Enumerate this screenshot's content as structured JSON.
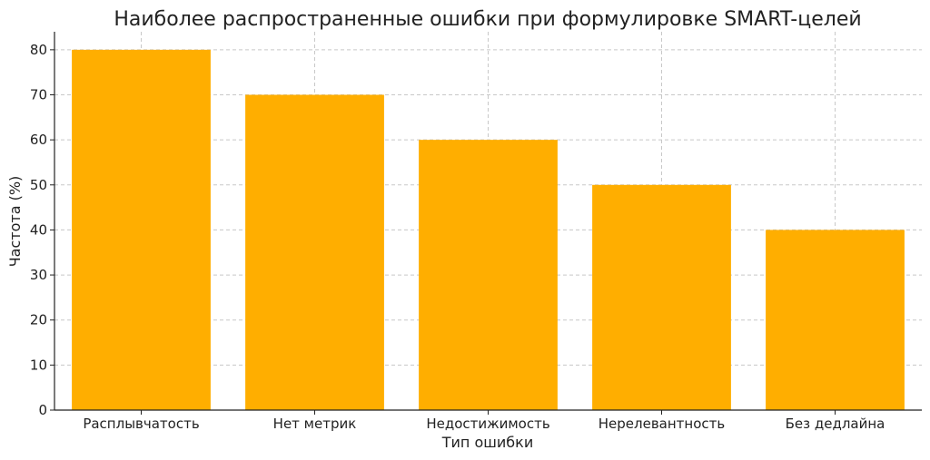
{
  "chart_data": {
    "type": "bar",
    "title": "Наиболее распространенные ошибки при формулировке SMART-целей",
    "xlabel": "Тип ошибки",
    "ylabel": "Частота (%)",
    "categories": [
      "Расплывчатость",
      "Нет метрик",
      "Недостижимость",
      "Нерелевантность",
      "Без дедлайна"
    ],
    "values": [
      80,
      70,
      60,
      50,
      40
    ],
    "ylim": [
      0,
      84
    ],
    "yticks": [
      0,
      10,
      20,
      30,
      40,
      50,
      60,
      70,
      80
    ],
    "grid": true,
    "bar_color": "#FFAE00"
  }
}
